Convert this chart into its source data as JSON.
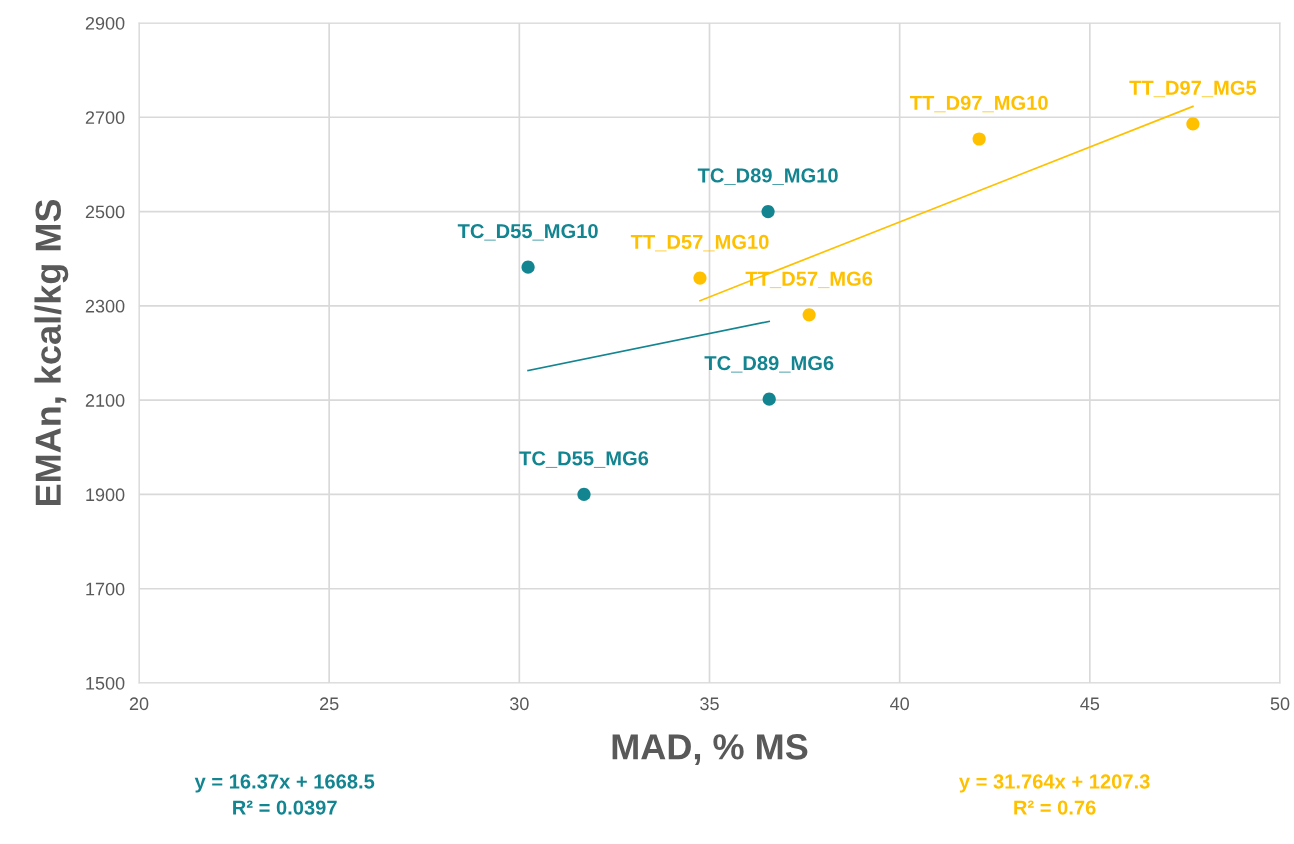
{
  "chart_data": {
    "type": "scatter",
    "xlabel": "MAD, % MS",
    "ylabel": "EMAn, kcal/kg MS",
    "xlim": [
      20,
      50
    ],
    "xticks": [
      20,
      25,
      30,
      35,
      40,
      45,
      50
    ],
    "ylim": [
      1500,
      2900
    ],
    "yticks": [
      1500,
      1700,
      1900,
      2100,
      2300,
      2500,
      2700,
      2900
    ],
    "grid": true,
    "legend": false,
    "marker": "circle",
    "series": [
      {
        "color": "#138591",
        "x": [
          30.23,
          36.54,
          36.57,
          31.7
        ],
        "values": [
          2382,
          2500,
          2102,
          1900
        ]
      },
      {
        "color": "#ffc000",
        "x": [
          34.75,
          37.62,
          42.09,
          47.71
        ],
        "values": [
          2359,
          2281,
          2654,
          2686
        ]
      },
      {
        "type": "line",
        "marker": "none",
        "color": "#138591",
        "x": [
          30.23,
          36.57
        ],
        "values": [
          2163,
          2267
        ]
      },
      {
        "type": "line",
        "marker": "none",
        "color": "#ffc000",
        "x": [
          34.75,
          47.71
        ],
        "values": [
          2311,
          2723
        ]
      }
    ],
    "annotations": [
      {
        "text": "TC_D55_MG10",
        "x": 30.23,
        "y": 2382
      },
      {
        "text": "TC_D89_MG10",
        "x": 36.54,
        "y": 2500
      },
      {
        "text": "TC_D89_MG6",
        "x": 36.57,
        "y": 2102
      },
      {
        "text": "TC_D55_MG6",
        "x": 31.7,
        "y": 1900
      },
      {
        "text": "TT_D57_MG10",
        "x": 34.75,
        "y": 2359
      },
      {
        "text": "TT_D57_MG6",
        "x": 37.62,
        "y": 2281
      },
      {
        "text": "TT_D97_MG10",
        "x": 42.09,
        "y": 2654
      },
      {
        "text": "TT_D97_MG5",
        "x": 47.71,
        "y": 2686
      },
      "y = 16.37x + 1668.5\nR² = 0.0397",
      "y = 31.764x + 1207.3\nR² = 0.76"
    ]
  }
}
